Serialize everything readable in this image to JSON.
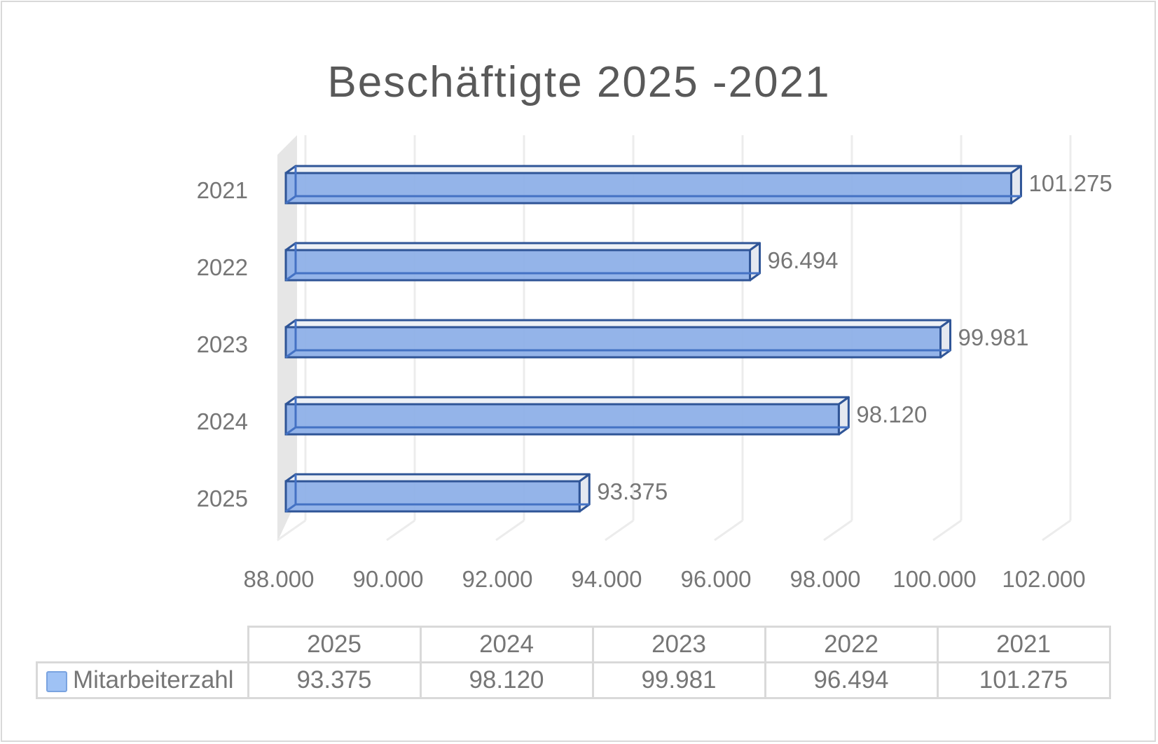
{
  "chart_data": {
    "type": "bar",
    "orientation": "horizontal",
    "style": "3d-clustered-bar",
    "title": "Beschäftigte 2025 -2021",
    "categories": [
      "2025",
      "2024",
      "2023",
      "2022",
      "2021"
    ],
    "series": [
      {
        "name": "Mitarbeiterzahl",
        "values": [
          93375,
          98120,
          99981,
          96494,
          101275
        ],
        "color": "#8eb0e8",
        "edge_color": "#2f5597"
      }
    ],
    "data_labels": [
      "93.375",
      "98.120",
      "99.981",
      "96.494",
      "101.275"
    ],
    "xlabel": "",
    "ylabel": "",
    "xlim": [
      88000,
      102000
    ],
    "x_ticks": [
      "88.000",
      "90.000",
      "92.000",
      "94.000",
      "96.000",
      "98.000",
      "100.000",
      "102.000"
    ],
    "grid": true,
    "legend": "data-table",
    "data_table": {
      "headers": [
        "2025",
        "2024",
        "2023",
        "2022",
        "2021"
      ],
      "rows": [
        {
          "label": "Mitarbeiterzahl",
          "values": [
            "93.375",
            "98.120",
            "99.981",
            "96.494",
            "101.275"
          ]
        }
      ]
    }
  }
}
